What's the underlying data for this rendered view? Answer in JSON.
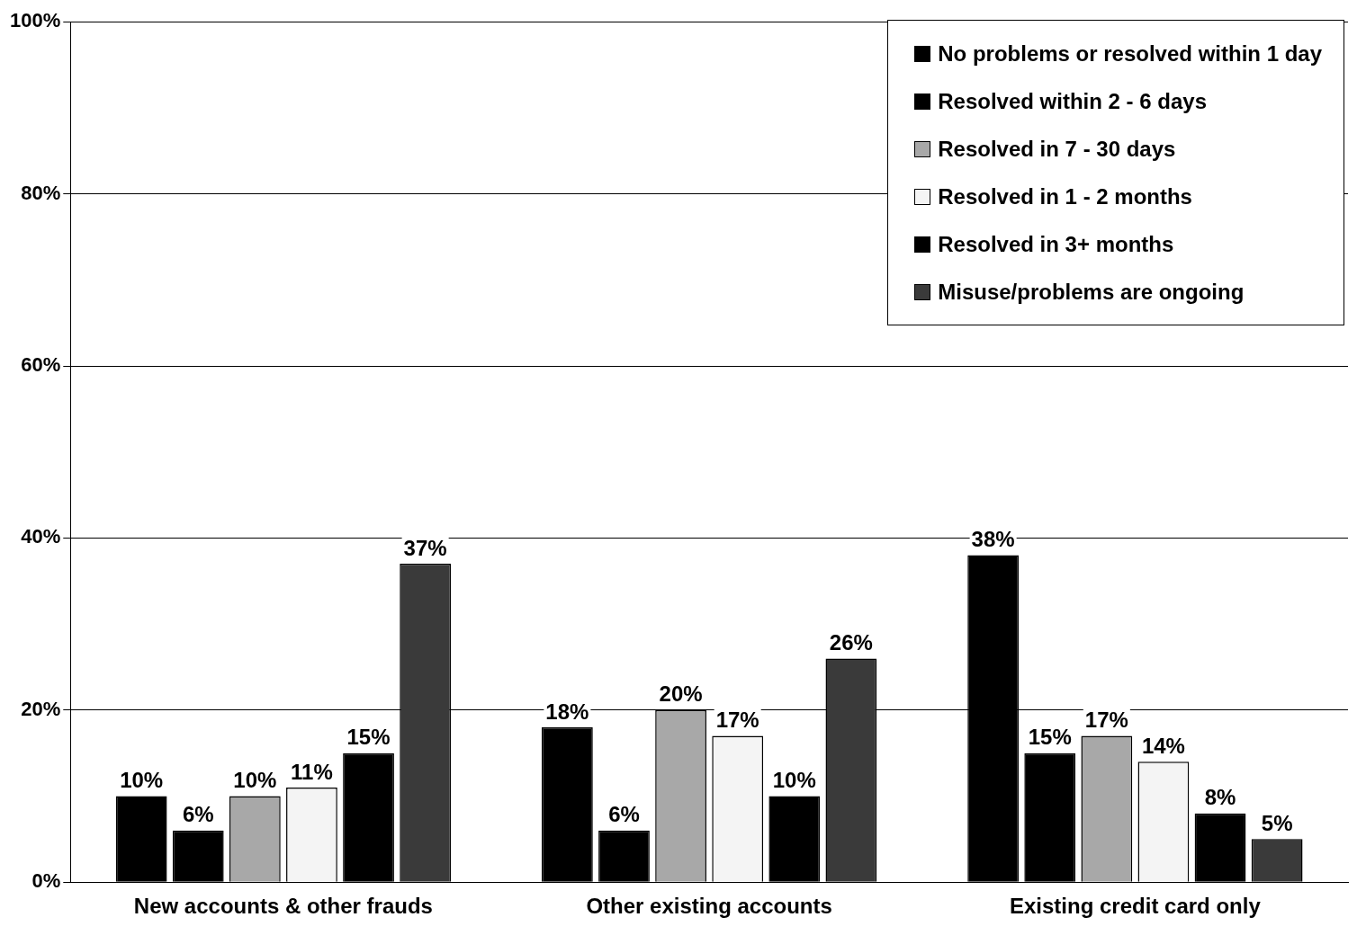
{
  "chart_data": {
    "type": "bar",
    "categories": [
      "New accounts & other frauds",
      "Other existing accounts",
      "Existing credit card only"
    ],
    "series": [
      {
        "name": "No problems or resolved within 1 day",
        "color": "#000000",
        "values": [
          10,
          18,
          38
        ],
        "value_labels": [
          "10%",
          "18%",
          "38%"
        ]
      },
      {
        "name": "Resolved within 2 - 6 days",
        "color": "#000000",
        "values": [
          6,
          6,
          15
        ],
        "value_labels": [
          "6%",
          "6%",
          "15%"
        ]
      },
      {
        "name": "Resolved in 7 - 30 days",
        "color": "#a8a8a8",
        "values": [
          10,
          20,
          17
        ],
        "value_labels": [
          "10%",
          "20%",
          "17%"
        ]
      },
      {
        "name": "Resolved in 1 - 2 months",
        "color": "#f4f4f4",
        "values": [
          11,
          17,
          14
        ],
        "value_labels": [
          "11%",
          "17%",
          "14%"
        ]
      },
      {
        "name": "Resolved in 3+ months",
        "color": "#000000",
        "values": [
          15,
          10,
          8
        ],
        "value_labels": [
          "15%",
          "10%",
          "8%"
        ]
      },
      {
        "name": "Misuse/problems are ongoing",
        "color": "#3a3a3a",
        "values": [
          37,
          26,
          5
        ],
        "value_labels": [
          "37%",
          "26%",
          "5%"
        ]
      }
    ],
    "ylim": [
      0,
      100
    ],
    "yticks": [
      {
        "value": 0,
        "label": "0%"
      },
      {
        "value": 20,
        "label": "20%"
      },
      {
        "value": 40,
        "label": "40%"
      },
      {
        "value": 60,
        "label": "60%"
      },
      {
        "value": 80,
        "label": "80%"
      },
      {
        "value": 100,
        "label": "100%"
      }
    ],
    "grid": "y",
    "legend": "top right"
  }
}
